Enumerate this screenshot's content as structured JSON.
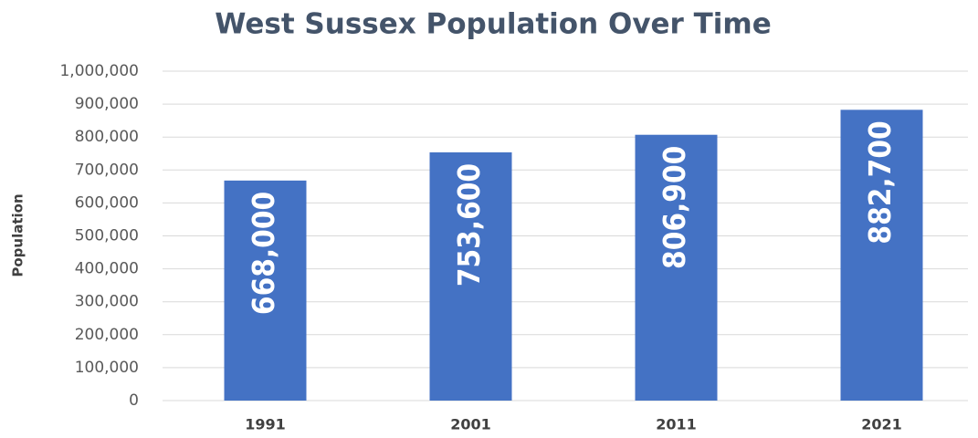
{
  "chart_data": {
    "type": "bar",
    "title": "West Sussex Population Over Time",
    "y_label": "Population",
    "categories": [
      "1991",
      "2001",
      "2011",
      "2021"
    ],
    "values": [
      668000,
      753600,
      806900,
      882700
    ],
    "value_labels": [
      "668,000",
      "753,600",
      "806,900",
      "882,700"
    ],
    "color": "#4472c4",
    "ylim": [
      0,
      1000000
    ],
    "yticks": [
      0,
      {
        "value": 100000,
        "label": "100,000"
      },
      {
        "value": 200000,
        "label": "200,000"
      },
      {
        "value": 300000,
        "label": "300,000"
      },
      {
        "value": 400000,
        "label": "400,000"
      },
      {
        "value": 500000,
        "label": "500,000"
      },
      {
        "value": 600000,
        "label": "600,000"
      },
      {
        "value": 700000,
        "label": "700,000"
      },
      {
        "value": 800000,
        "label": "800,000"
      },
      {
        "value": 900000,
        "label": "900,000"
      },
      {
        "value": 1000000,
        "label": "1,000,000"
      }
    ],
    "grid": true
  }
}
